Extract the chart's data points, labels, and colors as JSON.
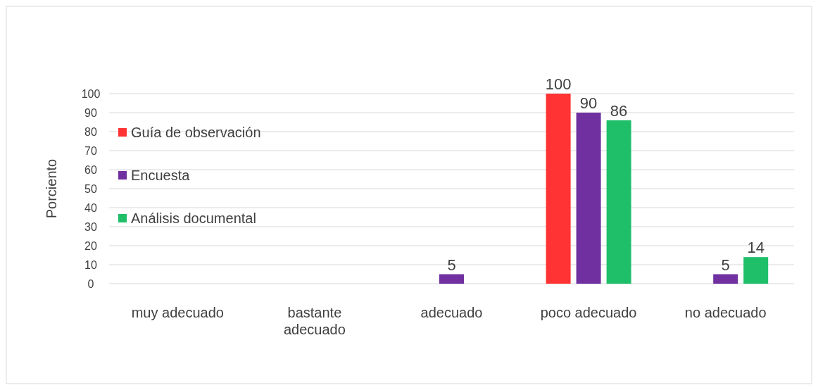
{
  "chart_data": {
    "type": "bar",
    "ylabel": "Porciento",
    "categories": [
      "muy adecuado",
      "bastante adecuado",
      "adecuado",
      "poco adecuado",
      "no adecuado"
    ],
    "series": [
      {
        "name": "Guía de observación",
        "color": "#ff3333",
        "values": [
          null,
          null,
          null,
          100,
          null
        ]
      },
      {
        "name": "Encuesta",
        "color": "#7030a0",
        "values": [
          null,
          null,
          5,
          90,
          5
        ]
      },
      {
        "name": "Análisis documental",
        "color": "#1fbf6a",
        "values": [
          null,
          null,
          null,
          86,
          14
        ]
      }
    ],
    "ylim": [
      0,
      100
    ],
    "yticks": [
      0,
      10,
      20,
      30,
      40,
      50,
      60,
      70,
      80,
      90,
      100
    ],
    "grid": "y",
    "legend": "left",
    "data_labels": true
  }
}
